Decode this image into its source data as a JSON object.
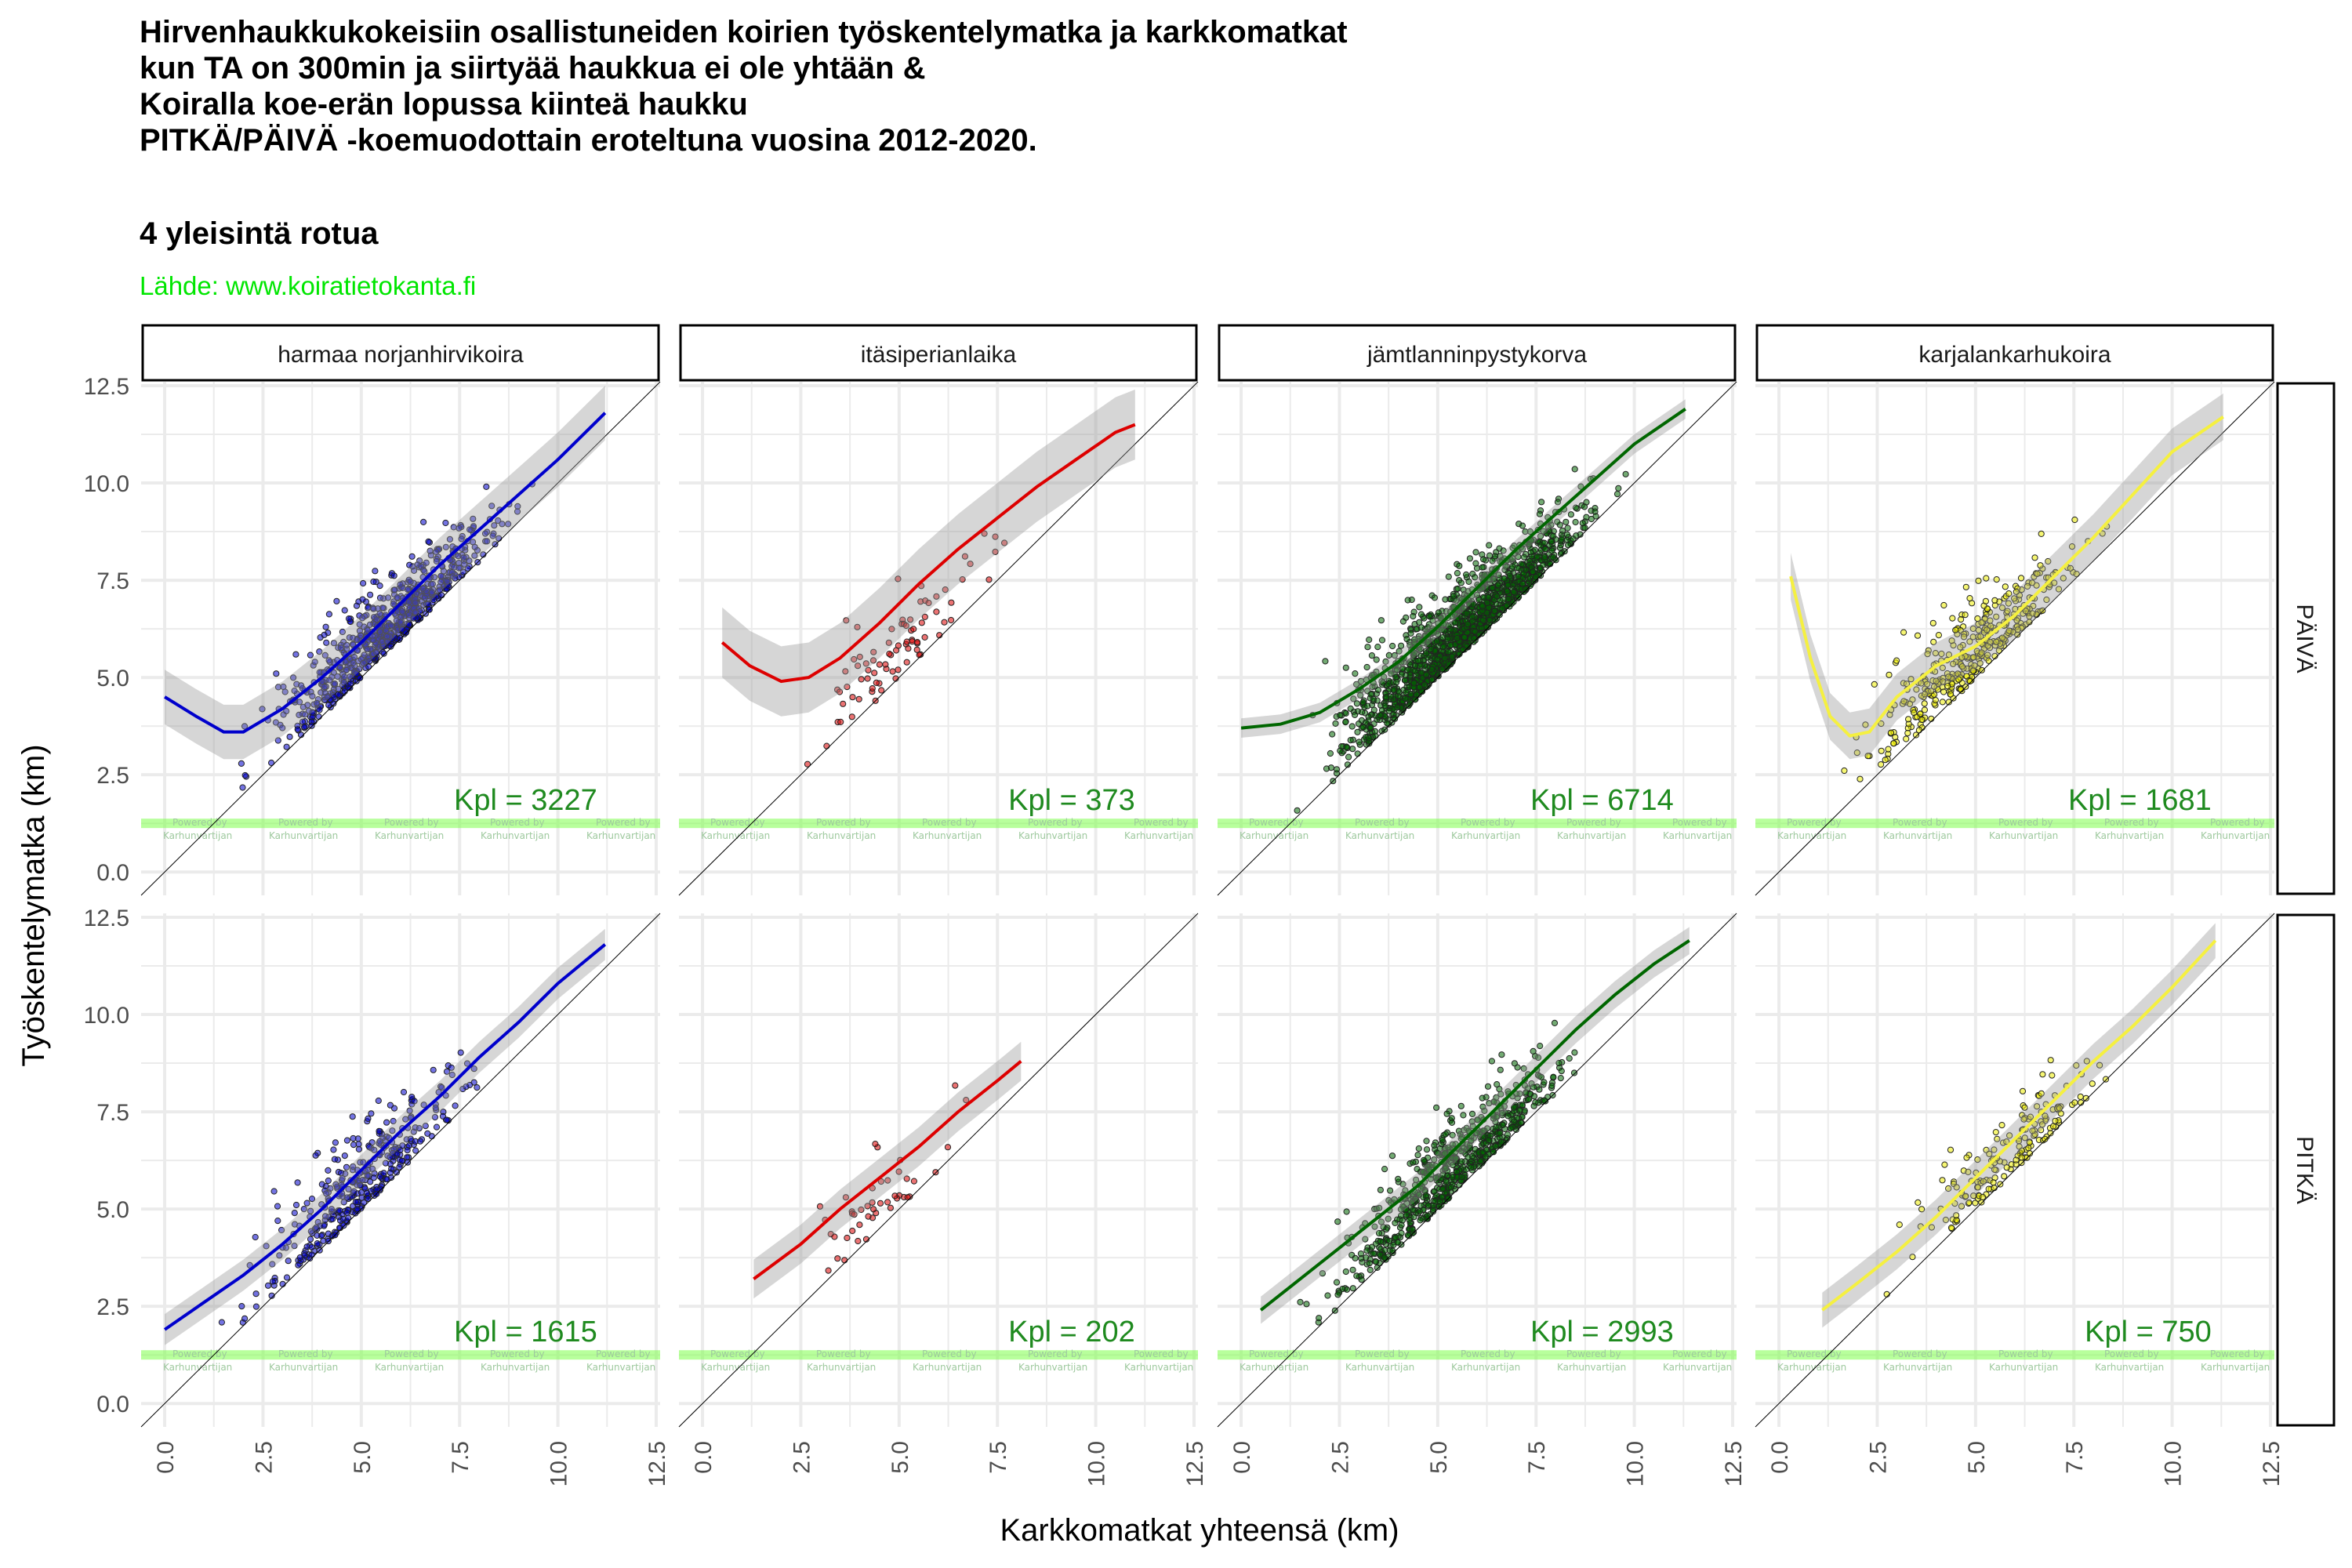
{
  "header": {
    "title": "Hirvenhaukkukokeisiin osallistuneiden koirien työskentelymatka ja karkkomatkat\nkun TA on 300min ja siirtyää haukkua ei ole yhtään &\nKoiralla koe-erän lopussa kiinteä haukku\nPITKÄ/PÄIVÄ -koemuodottain eroteltuna vuosina 2012-2020.",
    "subtitle": "4 yleisintä rotua",
    "caption": "Lähde: www.koiratietokanta.fi"
  },
  "watermark": {
    "line1": "Powered by",
    "line2": "Karhunvartijan"
  },
  "chart_data": {
    "type": "scatter",
    "title": "Hirvenhaukkukokeisiin osallistuneiden koirien työskentelymatka ja karkkomatkat",
    "xlabel": "Karkkomatkat yhteensä (km)",
    "ylabel": "Työskentelymatka (km)",
    "xlim": [
      -0.6,
      12.6
    ],
    "ylim": [
      -0.6,
      12.6
    ],
    "xticks": [
      "0.0",
      "2.5",
      "5.0",
      "7.5",
      "10.0",
      "12.5"
    ],
    "yticks": [
      "0.0",
      "2.5",
      "5.0",
      "7.5",
      "10.0",
      "12.5"
    ],
    "tick_values": [
      0,
      2.5,
      5,
      7.5,
      10,
      12.5
    ],
    "grid": true,
    "reference_line": "y = x",
    "facet_columns": [
      "harmaa norjanhirvikoira",
      "itäsiperianlaika",
      "jämtlanninpystykorva",
      "karjalankarhukoira"
    ],
    "facet_rows": [
      "PÄIVÄ",
      "PITKÄ"
    ],
    "panels": [
      {
        "row": "PÄIVÄ",
        "col": "harmaa norjanhirvikoira",
        "color": "#0000cc",
        "kpl_label": "Kpl = 3227",
        "n": 3227,
        "smooth": [
          [
            0,
            4.5
          ],
          [
            0.8,
            4.0
          ],
          [
            1.5,
            3.6
          ],
          [
            2.0,
            3.6
          ],
          [
            3.0,
            4.2
          ],
          [
            4.0,
            5.0
          ],
          [
            5.0,
            5.9
          ],
          [
            6.0,
            6.9
          ],
          [
            7.0,
            7.9
          ],
          [
            8.0,
            8.8
          ],
          [
            9.0,
            9.7
          ],
          [
            10.0,
            10.6
          ],
          [
            11.2,
            11.8
          ]
        ],
        "band": 0.7,
        "cloud": {
          "xmin": 0.3,
          "xmax": 11.8,
          "center": 5.6,
          "spread": 2.2
        }
      },
      {
        "row": "PÄIVÄ",
        "col": "itäsiperianlaika",
        "color": "#dd0000",
        "kpl_label": "Kpl = 373",
        "n": 373,
        "smooth": [
          [
            0.5,
            5.9
          ],
          [
            1.2,
            5.3
          ],
          [
            2.0,
            4.9
          ],
          [
            2.7,
            5.0
          ],
          [
            3.5,
            5.5
          ],
          [
            4.5,
            6.4
          ],
          [
            5.5,
            7.4
          ],
          [
            6.5,
            8.3
          ],
          [
            7.5,
            9.1
          ],
          [
            8.5,
            9.9
          ],
          [
            9.5,
            10.6
          ],
          [
            10.5,
            11.3
          ],
          [
            11.0,
            11.5
          ]
        ],
        "band": 0.9,
        "cloud": {
          "xmin": 0.5,
          "xmax": 11.0,
          "center": 5.0,
          "spread": 1.8
        }
      },
      {
        "row": "PÄIVÄ",
        "col": "jämtlanninpystykorva",
        "color": "#006600",
        "kpl_label": "Kpl = 6714",
        "n": 6714,
        "smooth": [
          [
            0,
            3.7
          ],
          [
            1.0,
            3.8
          ],
          [
            2.0,
            4.1
          ],
          [
            3.0,
            4.7
          ],
          [
            4.0,
            5.4
          ],
          [
            5.0,
            6.3
          ],
          [
            6.0,
            7.3
          ],
          [
            7.0,
            8.3
          ],
          [
            8.0,
            9.2
          ],
          [
            9.0,
            10.1
          ],
          [
            10.0,
            11.0
          ],
          [
            11.3,
            11.9
          ]
        ],
        "band": 0.25,
        "cloud": {
          "xmin": 0.0,
          "xmax": 11.8,
          "center": 5.6,
          "spread": 2.3
        }
      },
      {
        "row": "PÄIVÄ",
        "col": "karjalankarhukoira",
        "color": "#eeee00",
        "kpl_label": "Kpl = 1681",
        "n": 1681,
        "smooth": [
          [
            0.3,
            7.6
          ],
          [
            0.8,
            5.5
          ],
          [
            1.3,
            4.0
          ],
          [
            1.8,
            3.5
          ],
          [
            2.3,
            3.6
          ],
          [
            3.0,
            4.5
          ],
          [
            4.0,
            5.3
          ],
          [
            5.0,
            5.8
          ],
          [
            6.0,
            6.6
          ],
          [
            7.0,
            7.6
          ],
          [
            8.0,
            8.6
          ],
          [
            9.0,
            9.7
          ],
          [
            10.0,
            10.8
          ],
          [
            11.3,
            11.7
          ]
        ],
        "band": 0.6,
        "cloud": {
          "xmin": 0.3,
          "xmax": 11.5,
          "center": 5.0,
          "spread": 2.0
        }
      },
      {
        "row": "PITKÄ",
        "col": "harmaa norjanhirvikoira",
        "color": "#0000cc",
        "kpl_label": "Kpl = 1615",
        "n": 1615,
        "smooth": [
          [
            0,
            1.9
          ],
          [
            1.0,
            2.6
          ],
          [
            2.0,
            3.3
          ],
          [
            3.0,
            4.1
          ],
          [
            4.0,
            5.0
          ],
          [
            5.0,
            6.0
          ],
          [
            6.0,
            7.0
          ],
          [
            7.0,
            7.9
          ],
          [
            8.0,
            8.9
          ],
          [
            9.0,
            9.8
          ],
          [
            10.0,
            10.8
          ],
          [
            11.2,
            11.8
          ]
        ],
        "band": 0.4,
        "cloud": {
          "xmin": 0.0,
          "xmax": 11.9,
          "center": 5.0,
          "spread": 2.0
        }
      },
      {
        "row": "PITKÄ",
        "col": "itäsiperianlaika",
        "color": "#dd0000",
        "kpl_label": "Kpl = 202",
        "n": 202,
        "smooth": [
          [
            1.3,
            3.2
          ],
          [
            2.5,
            4.1
          ],
          [
            3.5,
            5.0
          ],
          [
            4.5,
            5.8
          ],
          [
            5.5,
            6.6
          ],
          [
            6.5,
            7.5
          ],
          [
            7.5,
            8.3
          ],
          [
            8.1,
            8.8
          ]
        ],
        "band": 0.5,
        "cloud": {
          "xmin": 1.2,
          "xmax": 8.0,
          "center": 4.5,
          "spread": 1.5
        }
      },
      {
        "row": "PITKÄ",
        "col": "jämtlanninpystykorva",
        "color": "#006600",
        "kpl_label": "Kpl = 2993",
        "n": 2993,
        "smooth": [
          [
            0.5,
            2.4
          ],
          [
            1.5,
            3.2
          ],
          [
            2.5,
            4.0
          ],
          [
            3.5,
            4.8
          ],
          [
            4.5,
            5.6
          ],
          [
            5.5,
            6.6
          ],
          [
            6.5,
            7.6
          ],
          [
            7.5,
            8.6
          ],
          [
            8.5,
            9.6
          ],
          [
            9.5,
            10.5
          ],
          [
            10.5,
            11.3
          ],
          [
            11.4,
            11.9
          ]
        ],
        "band": 0.35,
        "cloud": {
          "xmin": 0.3,
          "xmax": 11.5,
          "center": 5.3,
          "spread": 2.1
        }
      },
      {
        "row": "PITKÄ",
        "col": "karjalankarhukoira",
        "color": "#eeee00",
        "kpl_label": "Kpl = 750",
        "n": 750,
        "smooth": [
          [
            1.1,
            2.4
          ],
          [
            2.0,
            3.1
          ],
          [
            3.0,
            3.9
          ],
          [
            4.0,
            4.8
          ],
          [
            5.0,
            5.8
          ],
          [
            6.0,
            6.8
          ],
          [
            7.0,
            7.8
          ],
          [
            8.0,
            8.8
          ],
          [
            9.0,
            9.7
          ],
          [
            10.0,
            10.7
          ],
          [
            11.1,
            11.9
          ]
        ],
        "band": 0.45,
        "cloud": {
          "xmin": 1.0,
          "xmax": 11.3,
          "center": 5.5,
          "spread": 1.8
        }
      }
    ]
  }
}
